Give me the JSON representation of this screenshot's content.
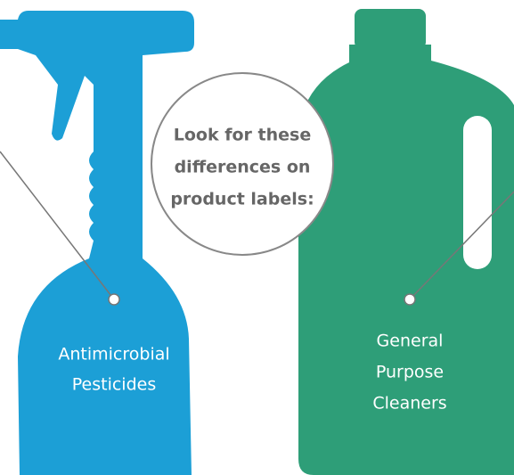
{
  "center": {
    "lines": [
      "Look for these",
      "differences on",
      "product labels:"
    ]
  },
  "products": [
    {
      "label": [
        "Antimicrobial",
        "Pesticides"
      ]
    },
    {
      "label": [
        "General",
        "Purpose",
        "Cleaners"
      ]
    }
  ]
}
